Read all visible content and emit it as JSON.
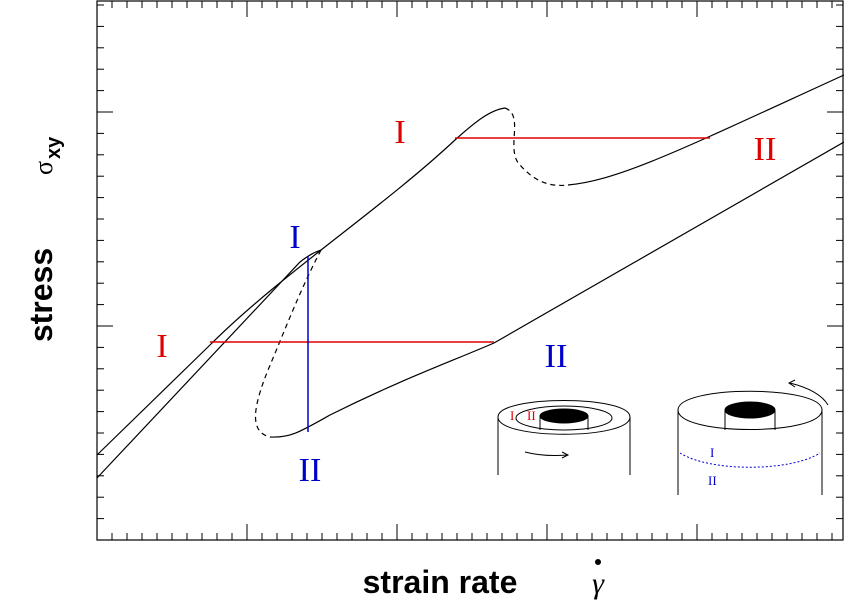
{
  "axes": {
    "y_label": "stress",
    "y_symbol": "σ",
    "y_symbol_sub": "xy",
    "x_label": "strain rate",
    "x_symbol": "γ"
  },
  "curve_labels": {
    "upper_low_branch": "I",
    "upper_high_branch": "II",
    "lower_vertical_top": "I",
    "lower_vertical_bottom": "II",
    "lower_low_branch": "I",
    "lower_high_branch": "II"
  },
  "insets": {
    "left": {
      "inner": "II",
      "outer": "I"
    },
    "right": {
      "top": "I",
      "bottom": "II"
    }
  }
}
